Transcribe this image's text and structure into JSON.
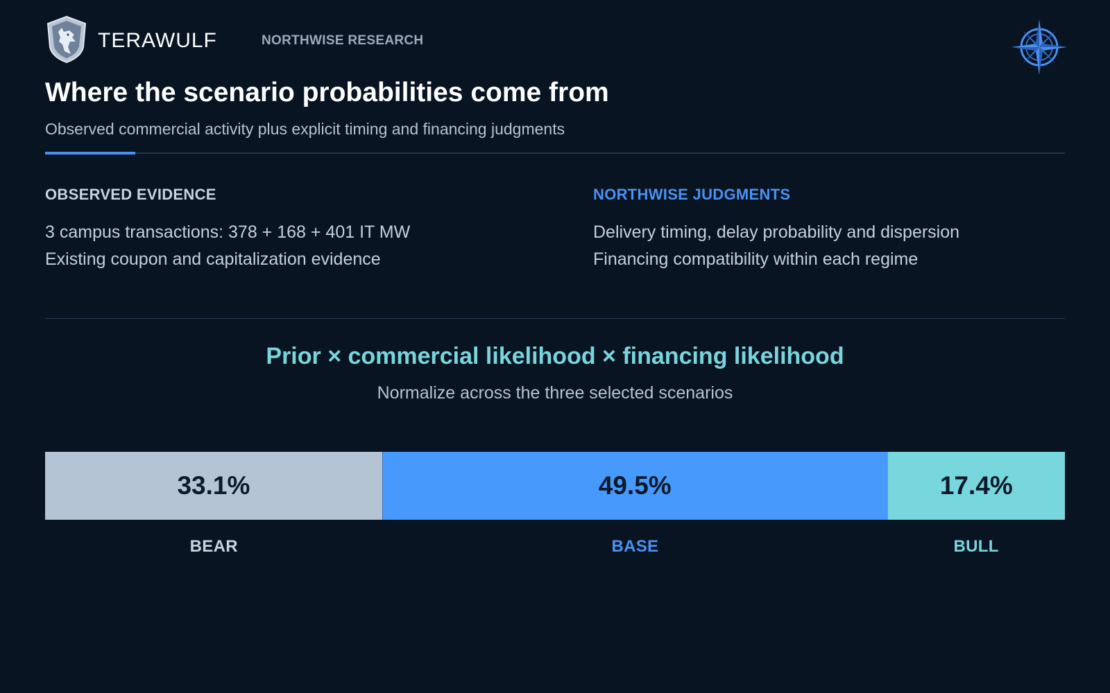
{
  "header": {
    "brand": "TERAWULF",
    "research_label": "NORTHWISE RESEARCH"
  },
  "title": "Where the scenario probabilities come from",
  "subtitle": "Observed commercial activity plus explicit timing and financing judgments",
  "evidence": {
    "heading": "OBSERVED EVIDENCE",
    "lines": [
      "3 campus transactions: 378 + 168 + 401 IT MW",
      "Existing coupon and capitalization evidence"
    ]
  },
  "judgments": {
    "heading": "NORTHWISE JUDGMENTS",
    "lines": [
      "Delivery timing, delay probability and dispersion",
      "Financing compatibility within each regime"
    ]
  },
  "formula": {
    "expression": "Prior × commercial likelihood × financing likelihood",
    "note": "Normalize across the three selected scenarios"
  },
  "scenarios": [
    {
      "key": "bear",
      "label": "BEAR",
      "share": 33.1,
      "share_text": "33.1%",
      "color": "#b4c4d5"
    },
    {
      "key": "base",
      "label": "BASE",
      "share": 49.5,
      "share_text": "49.5%",
      "color": "#4799fb"
    },
    {
      "key": "bull",
      "label": "BULL",
      "share": 17.4,
      "share_text": "17.4%",
      "color": "#78d6dd"
    }
  ],
  "colors": {
    "background": "#081422",
    "accent_blue": "#4a91f2",
    "accent_teal": "#79d5dc"
  },
  "icons": {
    "logo": "wolf-shield-icon",
    "corner": "compass-rose-icon"
  }
}
